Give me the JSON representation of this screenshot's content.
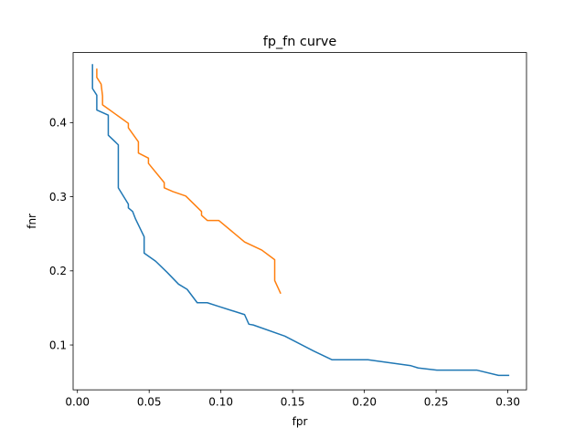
{
  "chart_data": {
    "type": "line",
    "title": "fp_fn curve",
    "xlabel": "fpr",
    "ylabel": "fnr",
    "xlim": [
      -0.003,
      0.313
    ],
    "ylim": [
      0.0395,
      0.4945
    ],
    "xticks": [
      0.0,
      0.05,
      0.1,
      0.15,
      0.2,
      0.25,
      0.3
    ],
    "xtick_labels": [
      "0.00",
      "0.05",
      "0.10",
      "0.15",
      "0.20",
      "0.25",
      "0.30"
    ],
    "yticks": [
      0.1,
      0.2,
      0.3,
      0.4
    ],
    "ytick_labels": [
      "0.1",
      "0.2",
      "0.3",
      "0.4"
    ],
    "grid": false,
    "legend": "none",
    "series": [
      {
        "color": "#1f77b4",
        "x": [
          0.0105,
          0.0105,
          0.0135,
          0.0135,
          0.0215,
          0.0215,
          0.0285,
          0.0285,
          0.0355,
          0.0355,
          0.0385,
          0.0405,
          0.0465,
          0.0465,
          0.0545,
          0.0625,
          0.0705,
          0.0765,
          0.0835,
          0.0905,
          0.0985,
          0.1165,
          0.1195,
          0.1225,
          0.1445,
          0.1645,
          0.1775,
          0.2025,
          0.2325,
          0.2375,
          0.2505,
          0.2785,
          0.2935,
          0.3005
        ],
        "y": [
          0.478,
          0.446,
          0.437,
          0.417,
          0.41,
          0.383,
          0.37,
          0.312,
          0.29,
          0.285,
          0.28,
          0.27,
          0.246,
          0.224,
          0.213,
          0.198,
          0.182,
          0.175,
          0.157,
          0.157,
          0.152,
          0.141,
          0.128,
          0.127,
          0.112,
          0.092,
          0.08,
          0.08,
          0.072,
          0.069,
          0.066,
          0.066,
          0.059,
          0.059
        ]
      },
      {
        "color": "#ff7f0e",
        "x": [
          0.0135,
          0.0135,
          0.0165,
          0.0175,
          0.0175,
          0.0355,
          0.0355,
          0.0425,
          0.0425,
          0.0495,
          0.0495,
          0.0605,
          0.0605,
          0.0665,
          0.0755,
          0.0865,
          0.0865,
          0.0905,
          0.0985,
          0.1165,
          0.1285,
          0.1375,
          0.1375,
          0.1415
        ],
        "y": [
          0.472,
          0.461,
          0.452,
          0.436,
          0.424,
          0.399,
          0.393,
          0.374,
          0.359,
          0.352,
          0.345,
          0.319,
          0.312,
          0.307,
          0.301,
          0.28,
          0.275,
          0.268,
          0.268,
          0.239,
          0.228,
          0.215,
          0.187,
          0.17
        ]
      }
    ]
  }
}
